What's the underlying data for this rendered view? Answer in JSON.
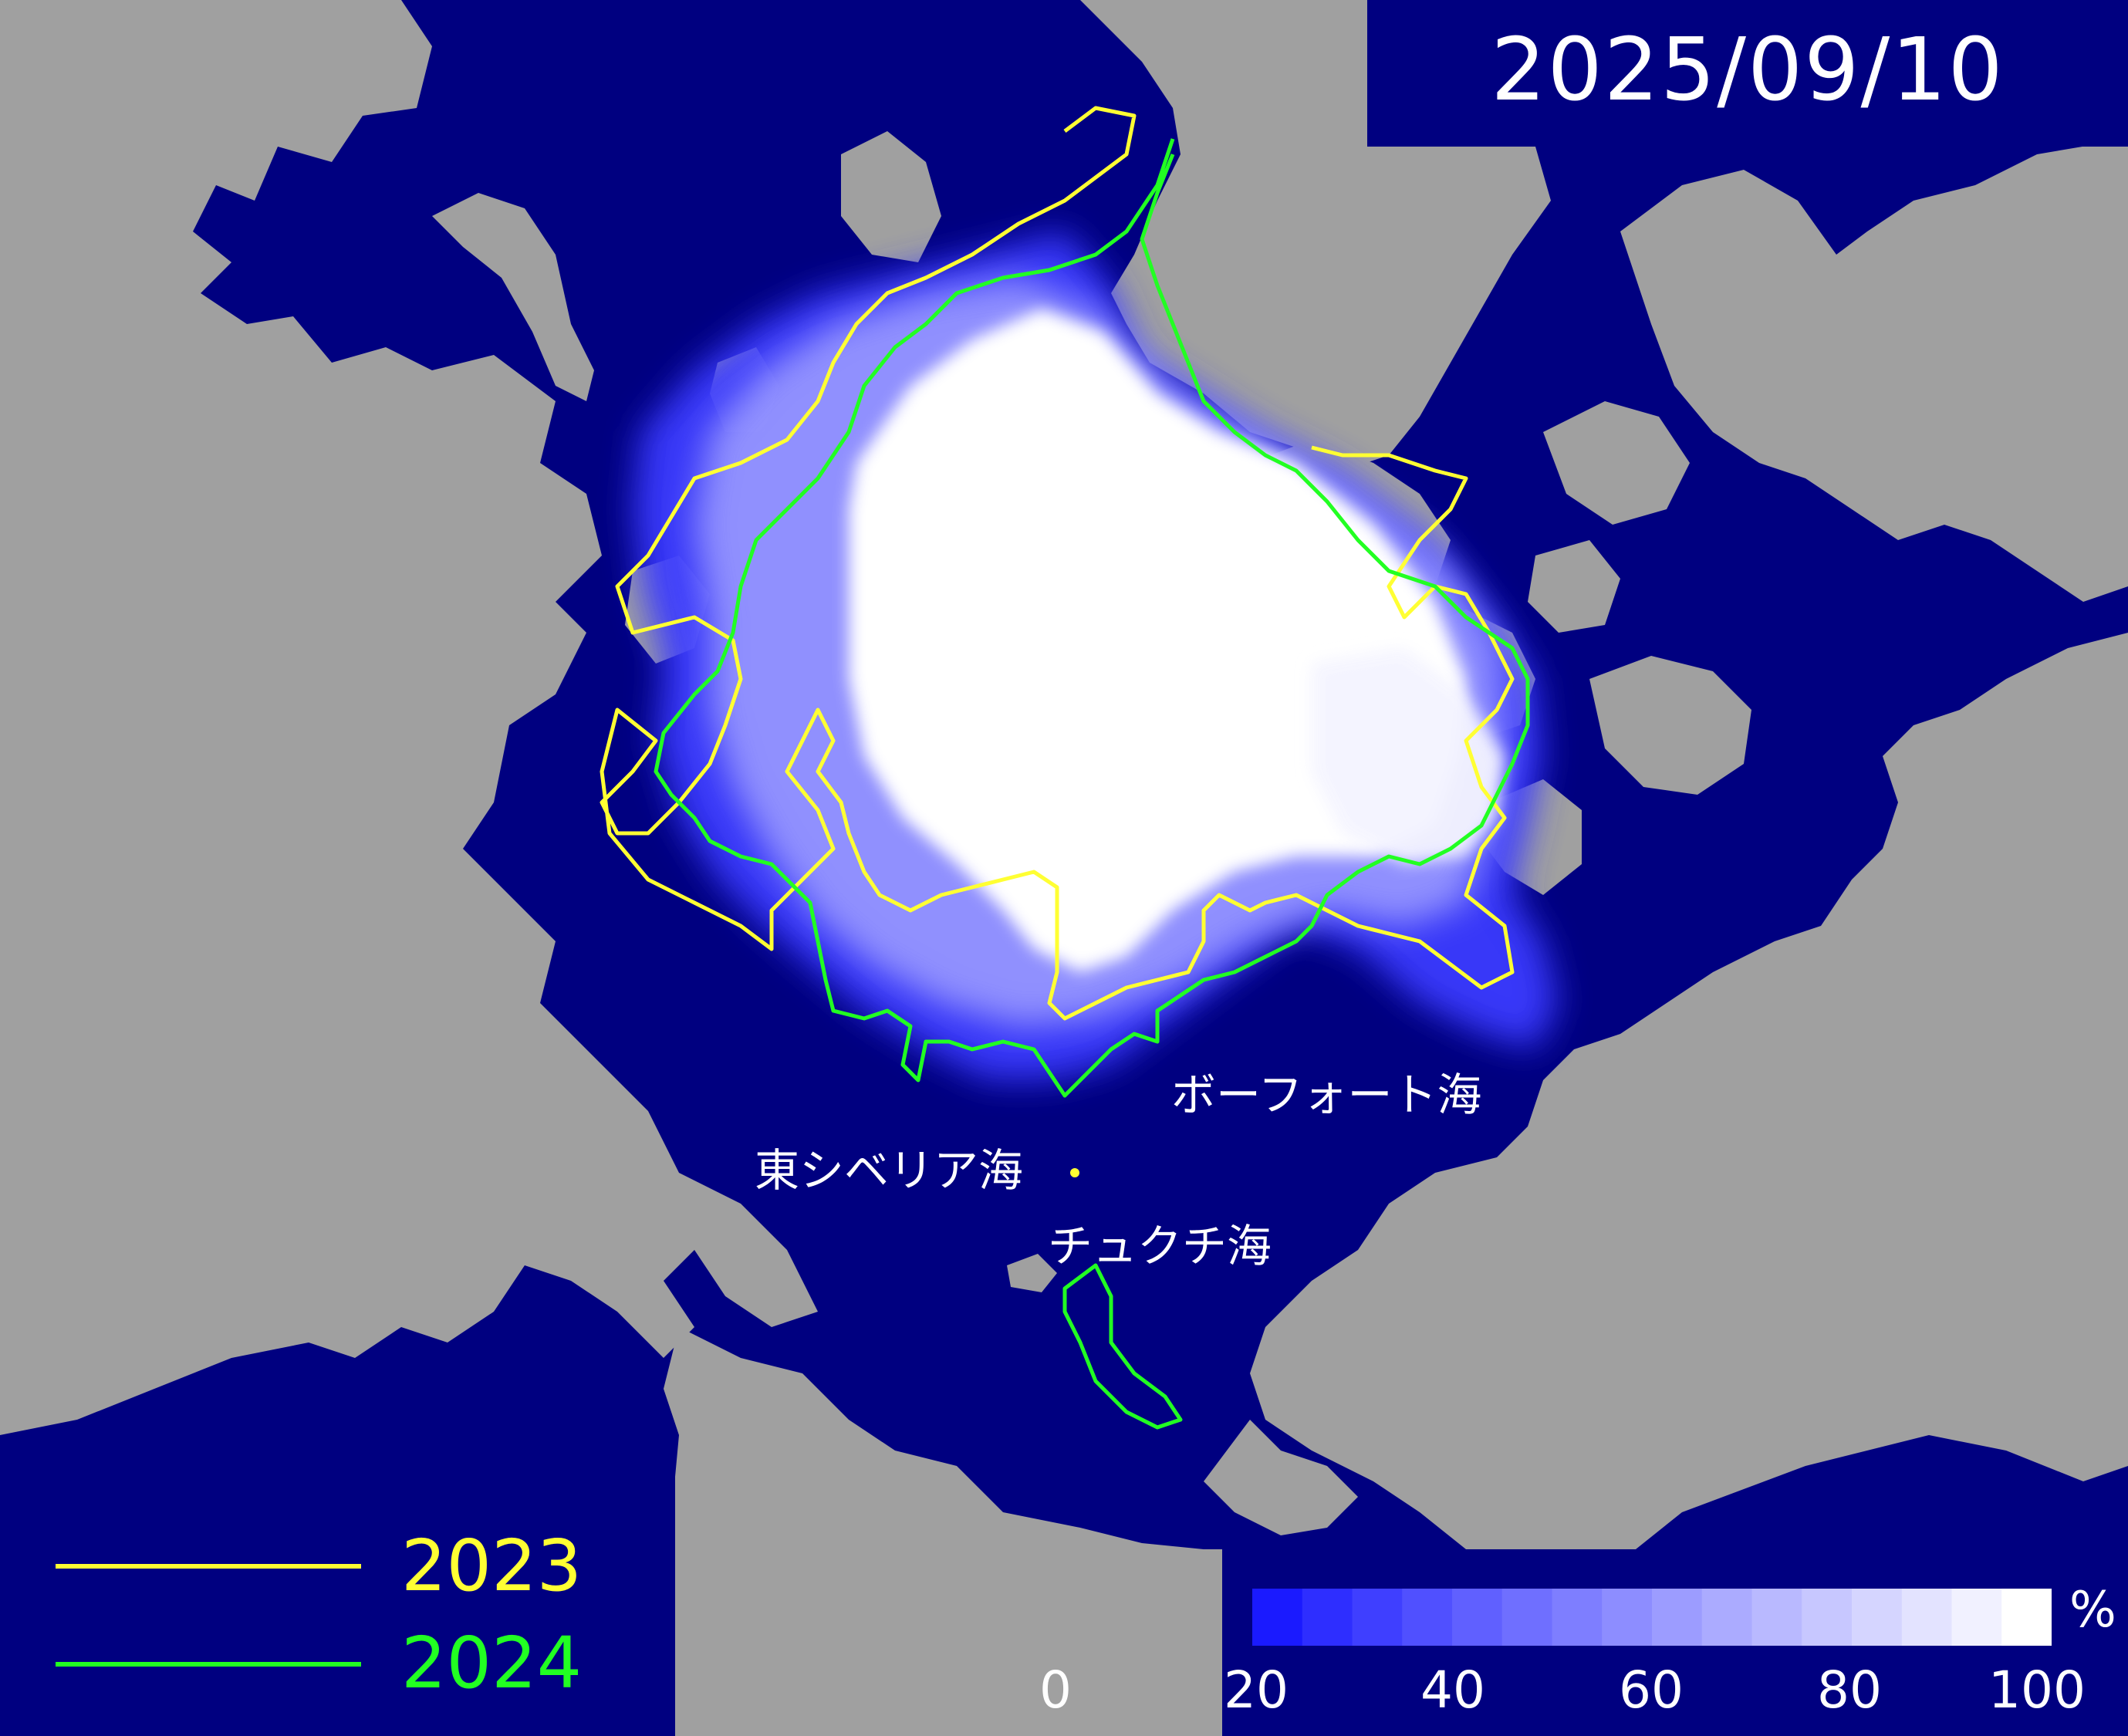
{
  "date": "2025/09/10",
  "labels": {
    "beaufort": "ボーフォート海",
    "east_siberian": "東シベリア海",
    "chukchi": "チュクチ海"
  },
  "legend": [
    {
      "year": "2023",
      "color": "#ffff33"
    },
    {
      "year": "2024",
      "color": "#22ff22"
    }
  ],
  "colorbar": {
    "unit": "%",
    "ticks": [
      "0",
      "20",
      "40",
      "60",
      "80",
      "100"
    ],
    "color_low": "#1a1aff",
    "color_high": "#ffffff"
  },
  "colors": {
    "ocean": "#000080",
    "land": "#a0a0a0",
    "ice": "#ffffff"
  }
}
